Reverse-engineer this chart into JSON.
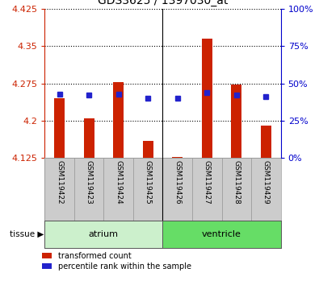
{
  "title": "GDS3625 / 1397030_at",
  "samples": [
    "GSM119422",
    "GSM119423",
    "GSM119424",
    "GSM119425",
    "GSM119426",
    "GSM119427",
    "GSM119428",
    "GSM119429"
  ],
  "red_bar_tops": [
    4.245,
    4.205,
    4.278,
    4.16,
    4.128,
    4.365,
    4.272,
    4.19
  ],
  "blue_pct": [
    43,
    42,
    43,
    40,
    40,
    44,
    42,
    41
  ],
  "y_min": 4.125,
  "y_max": 4.425,
  "y_ticks": [
    4.125,
    4.2,
    4.275,
    4.35,
    4.425
  ],
  "y2_ticks": [
    0,
    25,
    50,
    75,
    100
  ],
  "bar_baseline": 4.125,
  "bar_color": "#cc2200",
  "sq_color": "#2222cc",
  "groups": [
    {
      "label": "atrium",
      "start": 0,
      "end": 4,
      "color": "#ccf0cc"
    },
    {
      "label": "ventricle",
      "start": 4,
      "end": 8,
      "color": "#66dd66"
    }
  ],
  "tissue_label": "tissue",
  "bg_plot": "#ffffff",
  "bg_sample": "#cccccc",
  "title_color": "#000000",
  "left_axis_color": "#cc2200",
  "right_axis_color": "#0000cc",
  "atrium_div": 3.5,
  "bar_width": 0.35
}
